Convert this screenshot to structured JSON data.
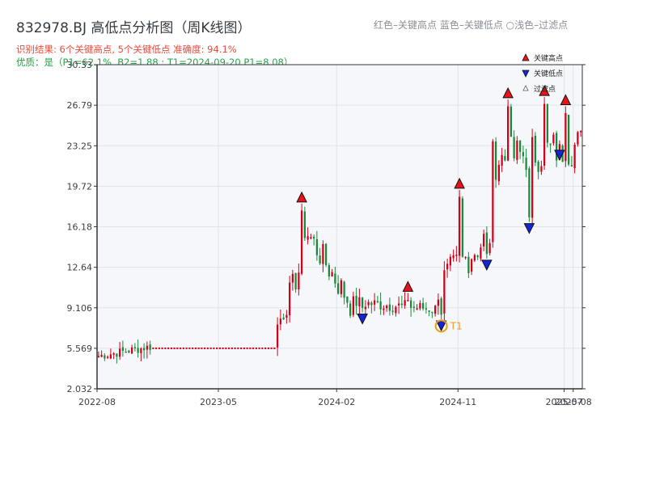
{
  "header": {
    "title": "832978.BJ 高低点分析图（周K线图）",
    "legend_note": "红色–关键高点      蓝色–关键低点  ○浅色–过滤点",
    "result_line": "识别结果: 6个关键高点, 5个关键低点  准确度: 94.1%",
    "quality_line": "优质：是（P1=62.1%, B2=1.88 ; T1=2024-09-20 P1=8.08）"
  },
  "colors": {
    "up": "#d0021b",
    "down": "#1a8a3a",
    "high_marker": "#e8131a",
    "low_marker": "#1226d6",
    "t1_marker": "#f39c12",
    "plot_bg": "#f5f7fa",
    "grid": "#dfe3e8"
  },
  "chart_data": {
    "type": "candlestick",
    "xlim": [
      0,
      160
    ],
    "ylim": [
      2.032,
      30.33
    ],
    "y_ticks": [
      2.032,
      5.569,
      9.106,
      12.64,
      16.18,
      19.72,
      23.25,
      26.79,
      30.33
    ],
    "y_tick_labels": [
      "2.032",
      "5.569",
      "9.106",
      "12.64",
      "16.18",
      "19.72",
      "23.25",
      "26.79",
      "30.33"
    ],
    "x_ticks": [
      {
        "label": "2022-08",
        "x": 0
      },
      {
        "label": "2023-05",
        "x": 40
      },
      {
        "label": "2024-02",
        "x": 79
      },
      {
        "label": "2024-11",
        "x": 119
      },
      {
        "label": "2025-07",
        "x": 154
      },
      {
        "label": "2025-08",
        "x": 157
      }
    ],
    "grid": true,
    "legend": {
      "position": "top-right",
      "items": [
        {
          "label": "关键高点",
          "kind": "high"
        },
        {
          "label": "关键低点",
          "kind": "low"
        },
        {
          "label": "过滤点",
          "kind": "filtered"
        }
      ]
    },
    "segments": [
      {
        "type": "wave",
        "from": 0,
        "to": 18,
        "start": 4.9,
        "end": 5.7,
        "amp": 0.4
      },
      {
        "type": "flat",
        "from": 18,
        "to": 59,
        "value": 5.569
      },
      {
        "type": "wave",
        "from": 59,
        "to": 68,
        "start": 7.5,
        "end": 13.0,
        "amp": 1.2
      },
      {
        "type": "wave",
        "from": 68,
        "to": 84,
        "start": 16.0,
        "end": 9.5,
        "amp": 1.3
      },
      {
        "type": "wave",
        "from": 84,
        "to": 112,
        "start": 9.6,
        "end": 9.0,
        "amp": 0.6
      },
      {
        "type": "wave",
        "from": 112,
        "to": 130,
        "start": 11.0,
        "end": 15.5,
        "amp": 1.6
      },
      {
        "type": "wave",
        "from": 130,
        "to": 160,
        "start": 22.0,
        "end": 23.3,
        "amp": 1.8
      }
    ],
    "key_highs": [
      {
        "x": 67,
        "price": 18.2
      },
      {
        "x": 102,
        "price": 10.4
      },
      {
        "x": 119,
        "price": 19.4
      },
      {
        "x": 135,
        "price": 27.3
      },
      {
        "x": 147,
        "price": 27.5
      },
      {
        "x": 154,
        "price": 26.7
      }
    ],
    "key_lows": [
      {
        "x": 87,
        "price": 8.7
      },
      {
        "x": 128,
        "price": 13.4
      },
      {
        "x": 142,
        "price": 16.6
      },
      {
        "x": 152,
        "price": 23.0
      },
      {
        "x": 113,
        "price": 8.1
      }
    ],
    "t1": {
      "label": "T1",
      "x": 113,
      "price": 8.08
    }
  }
}
